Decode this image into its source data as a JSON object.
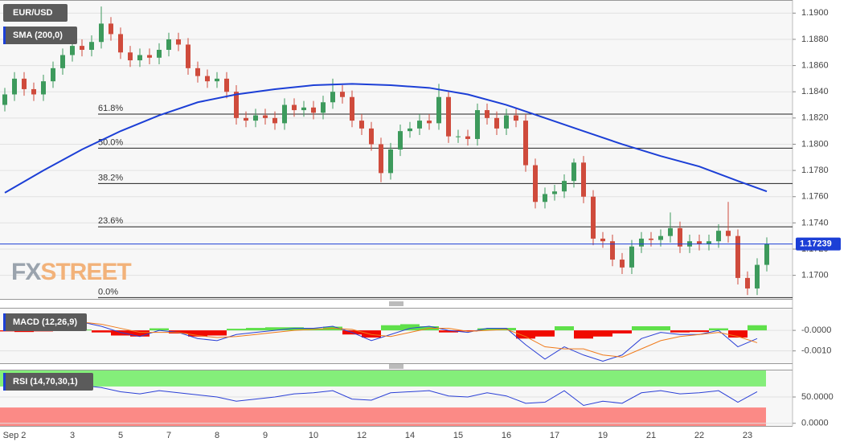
{
  "chart_data": [
    {
      "type": "candlestick",
      "symbol": "EUR/USD",
      "categories": [
        null,
        "Sep 2",
        null,
        null,
        null,
        null,
        null,
        "3",
        null,
        null,
        null,
        null,
        "5",
        null,
        null,
        null,
        null,
        "7",
        null,
        null,
        null,
        null,
        "8",
        null,
        null,
        null,
        null,
        "9",
        null,
        null,
        null,
        null,
        "10",
        null,
        null,
        null,
        null,
        "12",
        null,
        null,
        null,
        null,
        "14",
        null,
        null,
        null,
        null,
        "15",
        null,
        null,
        null,
        null,
        "16",
        null,
        null,
        null,
        null,
        "17",
        null,
        null,
        null,
        null,
        "19",
        null,
        null,
        null,
        null,
        "21",
        null,
        null,
        null,
        null,
        "22",
        null,
        null,
        null,
        null,
        "23",
        null,
        null
      ],
      "open": [
        1.183,
        1.1838,
        1.185,
        1.1842,
        1.1838,
        1.1848,
        1.1858,
        1.1868,
        1.1875,
        1.1872,
        1.1878,
        1.1892,
        1.1884,
        1.187,
        1.1864,
        1.1868,
        1.1866,
        1.1872,
        1.188,
        1.1876,
        1.1858,
        1.1852,
        1.1848,
        1.185,
        1.184,
        1.182,
        1.1818,
        1.1822,
        1.182,
        1.1816,
        1.183,
        1.1826,
        1.1828,
        1.1824,
        1.1832,
        1.184,
        1.1836,
        1.1818,
        1.1812,
        1.18,
        1.1778,
        1.1796,
        1.181,
        1.1812,
        1.1818,
        1.1816,
        1.1836,
        1.1806,
        1.1806,
        1.1804,
        1.1826,
        1.182,
        1.1812,
        1.1822,
        1.1818,
        1.1784,
        1.1756,
        1.1762,
        1.1764,
        1.1772,
        1.1786,
        1.176,
        1.1728,
        1.1726,
        1.1712,
        1.1706,
        1.1722,
        1.1728,
        1.1727,
        1.173,
        1.1736,
        1.1722,
        1.1726,
        1.1724,
        1.1726,
        1.1734,
        1.173,
        1.1698,
        1.169,
        1.1708
      ],
      "high": [
        1.1843,
        1.1855,
        1.1855,
        1.1847,
        1.1853,
        1.1863,
        1.1873,
        1.188,
        1.188,
        1.1883,
        1.1905,
        1.1897,
        1.1889,
        1.1875,
        1.1873,
        1.1873,
        1.1877,
        1.1885,
        1.1885,
        1.1881,
        1.1863,
        1.1857,
        1.1855,
        1.1855,
        1.1845,
        1.1825,
        1.1827,
        1.1827,
        1.1825,
        1.1835,
        1.1835,
        1.1833,
        1.1833,
        1.1837,
        1.185,
        1.1845,
        1.1841,
        1.1823,
        1.1817,
        1.1805,
        1.1801,
        1.1815,
        1.1817,
        1.1823,
        1.1823,
        1.1846,
        1.1841,
        1.1811,
        1.1811,
        1.1831,
        1.1831,
        1.1825,
        1.1827,
        1.1827,
        1.1823,
        1.1789,
        1.1767,
        1.1769,
        1.1777,
        1.1789,
        1.1791,
        1.1765,
        1.1733,
        1.1731,
        1.1717,
        1.1727,
        1.1733,
        1.1733,
        1.1735,
        1.1748,
        1.1741,
        1.1731,
        1.1731,
        1.1731,
        1.1739,
        1.1756,
        1.1735,
        1.1703,
        1.1713,
        1.1729
      ],
      "low": [
        1.1825,
        1.1833,
        1.1837,
        1.1833,
        1.1833,
        1.1843,
        1.1853,
        1.1863,
        1.1867,
        1.1867,
        1.1873,
        1.1879,
        1.1865,
        1.1859,
        1.1859,
        1.1861,
        1.1861,
        1.1867,
        1.1871,
        1.1853,
        1.1847,
        1.1843,
        1.1843,
        1.1835,
        1.1815,
        1.1813,
        1.1813,
        1.1815,
        1.1811,
        1.1811,
        1.1821,
        1.1821,
        1.1819,
        1.1819,
        1.1827,
        1.1831,
        1.1813,
        1.1807,
        1.1795,
        1.1771,
        1.1773,
        1.1791,
        1.1805,
        1.1807,
        1.1811,
        1.1811,
        1.1801,
        1.1801,
        1.1799,
        1.1799,
        1.1815,
        1.1807,
        1.1807,
        1.1813,
        1.1779,
        1.1751,
        1.1751,
        1.1757,
        1.1759,
        1.1767,
        1.1755,
        1.1723,
        1.1721,
        1.1707,
        1.1701,
        1.1701,
        1.1717,
        1.1722,
        1.1722,
        1.1725,
        1.1717,
        1.1717,
        1.1719,
        1.1719,
        1.1721,
        1.1725,
        1.1693,
        1.1685,
        1.1685,
        1.1703
      ],
      "close": [
        1.1838,
        1.185,
        1.1842,
        1.1838,
        1.1848,
        1.1858,
        1.1868,
        1.1875,
        1.1872,
        1.1878,
        1.1892,
        1.1884,
        1.187,
        1.1864,
        1.1868,
        1.1866,
        1.1872,
        1.188,
        1.1876,
        1.1858,
        1.1852,
        1.1848,
        1.185,
        1.184,
        1.182,
        1.1818,
        1.1822,
        1.182,
        1.1816,
        1.183,
        1.1826,
        1.1828,
        1.1824,
        1.1832,
        1.184,
        1.1836,
        1.1818,
        1.1812,
        1.18,
        1.1778,
        1.1796,
        1.181,
        1.1812,
        1.1818,
        1.1816,
        1.1836,
        1.1806,
        1.1806,
        1.1804,
        1.1826,
        1.182,
        1.1812,
        1.1822,
        1.1818,
        1.1784,
        1.1756,
        1.1762,
        1.1764,
        1.1772,
        1.1786,
        1.176,
        1.1728,
        1.1726,
        1.1712,
        1.1706,
        1.1722,
        1.1728,
        1.1727,
        1.173,
        1.1736,
        1.1722,
        1.1726,
        1.1724,
        1.1726,
        1.1734,
        1.173,
        1.1698,
        1.169,
        1.1708,
        1.1724
      ],
      "up_color": "#3d9a5c",
      "down_color": "#cf4b3c",
      "ylim": [
        1.1682,
        1.191
      ],
      "yticks": [
        {
          "value": 1.17,
          "label": "1.1700"
        },
        {
          "value": 1.172,
          "label": "1.1720"
        },
        {
          "value": 1.174,
          "label": "1.1740"
        },
        {
          "value": 1.176,
          "label": "1.1760"
        },
        {
          "value": 1.178,
          "label": "1.1780"
        },
        {
          "value": 1.18,
          "label": "1.1800"
        },
        {
          "value": 1.182,
          "label": "1.1820"
        },
        {
          "value": 1.184,
          "label": "1.1840"
        },
        {
          "value": 1.186,
          "label": "1.1860"
        },
        {
          "value": 1.188,
          "label": "1.1880"
        },
        {
          "value": 1.19,
          "label": "1.1900"
        }
      ],
      "grid": true,
      "overlays": [
        {
          "name": "SMA (200,0)",
          "color": "#1c3fd6",
          "x": [
            0,
            4,
            8,
            12,
            16,
            20,
            24,
            28,
            32,
            36,
            40,
            44,
            48,
            52,
            56,
            60,
            64,
            68,
            72,
            76,
            79
          ],
          "values": [
            1.1763,
            1.178,
            1.1796,
            1.181,
            1.1822,
            1.1832,
            1.1838,
            1.1842,
            1.1845,
            1.1846,
            1.1845,
            1.1843,
            1.1838,
            1.183,
            1.182,
            1.181,
            1.18,
            1.1791,
            1.1783,
            1.1772,
            1.1764
          ]
        }
      ],
      "fib_levels": [
        {
          "label": "61.8%",
          "value": 1.1823
        },
        {
          "label": "50.0%",
          "value": 1.1797
        },
        {
          "label": "38.2%",
          "value": 1.177
        },
        {
          "label": "23.6%",
          "value": 1.1737
        },
        {
          "label": "0.0%",
          "value": 1.1683
        }
      ],
      "last_price": {
        "value": 1.17239,
        "label": "1.17239"
      },
      "watermark": {
        "part1": "FX",
        "part2": "STREET"
      }
    },
    {
      "type": "macd",
      "name": "MACD (12,26,9)",
      "x": [
        0,
        2,
        4,
        6,
        8,
        10,
        12,
        14,
        16,
        18,
        20,
        22,
        24,
        26,
        28,
        30,
        32,
        34,
        36,
        38,
        40,
        42,
        44,
        46,
        48,
        50,
        52,
        54,
        56,
        58,
        60,
        62,
        64,
        66,
        68,
        70,
        72,
        74,
        76,
        78
      ],
      "histogram": {
        "up_color": "#5fe04a",
        "down_color": "#f00a00",
        "values": [
          -5e-05,
          -8e-05,
          -5e-05,
          6e-05,
          4e-05,
          -0.0001,
          -0.00025,
          -0.0003,
          0.0001,
          -0.00015,
          -0.0003,
          -0.00025,
          8e-05,
          0.00012,
          0.00015,
          0.00015,
          0.0001,
          0.00018,
          -0.0002,
          -0.00035,
          0.00025,
          0.0003,
          0.0002,
          -0.0001,
          -5e-05,
          0.0001,
          0.00012,
          -0.0004,
          -0.0003,
          0.0002,
          -0.0004,
          -0.0003,
          -0.00015,
          0.0002,
          0.0002,
          -0.0001,
          -8e-05,
          0.0001,
          -0.00035,
          0.00025
        ]
      },
      "macd_line": {
        "color": "#2a3fd6",
        "values": [
          0.0003,
          0.00035,
          0.0004,
          0.00045,
          0.0004,
          0.0002,
          -0.0001,
          -0.0003,
          0,
          -0.0001,
          -0.0004,
          -0.0005,
          -0.0002,
          -0.0001,
          0,
          0.0001,
          0.0001,
          0.0002,
          -0.0001,
          -0.0005,
          -0.0002,
          0.0001,
          0.0002,
          0,
          -0.0001,
          0.0001,
          0.0001,
          -0.0007,
          -0.0014,
          -0.0008,
          -0.0012,
          -0.0015,
          -0.0012,
          -0.0004,
          -0.0001,
          -0.0002,
          -0.0002,
          0,
          -0.0008,
          -0.0004
        ]
      },
      "signal_line": {
        "color": "#f07a1a",
        "values": [
          0.0004,
          0.00038,
          0.0004,
          0.0004,
          0.0004,
          0.0003,
          0.0001,
          -0.0001,
          -0.0001,
          -0.0001,
          -0.00025,
          -0.00035,
          -0.0003,
          -0.0002,
          -0.0001,
          0,
          5e-05,
          0.0001,
          5e-05,
          -0.0002,
          -0.0003,
          -0.0001,
          0.0001,
          0.0001,
          -5e-05,
          0,
          5e-05,
          -0.0003,
          -0.0008,
          -0.0009,
          -0.0009,
          -0.0012,
          -0.0013,
          -0.0009,
          -0.0005,
          -0.0003,
          -0.0002,
          -0.0001,
          -0.0003,
          -0.0006
        ]
      },
      "ylim": [
        -0.0016,
        0.0011
      ],
      "yticks": [
        {
          "value": 0,
          "label": "-0.0000"
        },
        {
          "value": -0.001,
          "label": "-0.0010"
        }
      ],
      "grid": true
    },
    {
      "type": "line",
      "name": "RSI (14,70,30,1)",
      "x": [
        0,
        2,
        4,
        6,
        8,
        10,
        12,
        14,
        16,
        18,
        20,
        22,
        24,
        26,
        28,
        30,
        32,
        34,
        36,
        38,
        40,
        42,
        44,
        46,
        48,
        50,
        52,
        54,
        56,
        58,
        60,
        62,
        64,
        66,
        68,
        70,
        72,
        74,
        76,
        78
      ],
      "color": "#2a3fd6",
      "values": [
        72,
        70,
        72,
        70,
        72,
        68,
        60,
        56,
        62,
        58,
        54,
        50,
        42,
        46,
        50,
        56,
        58,
        62,
        46,
        44,
        58,
        60,
        62,
        52,
        50,
        58,
        52,
        38,
        40,
        62,
        34,
        42,
        38,
        58,
        62,
        56,
        58,
        62,
        40,
        60
      ],
      "overbought": 70,
      "oversold": 30,
      "overbought_color": "#84ee7a",
      "oversold_color": "#fb8a86",
      "ylim": [
        -5,
        102
      ],
      "yticks": [
        {
          "value": 50,
          "label": "50.0000"
        },
        {
          "value": 0,
          "label": "0.0000"
        }
      ],
      "grid": true
    }
  ]
}
